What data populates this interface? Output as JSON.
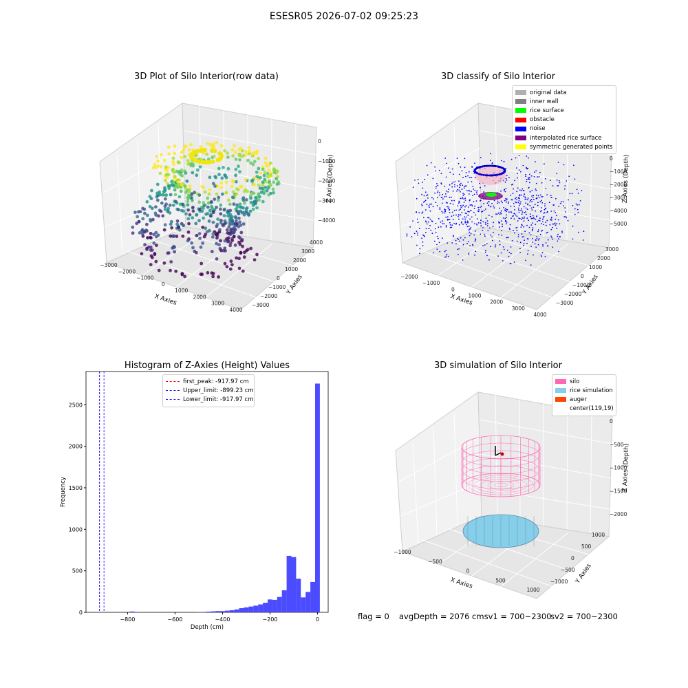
{
  "figure": {
    "suptitle": "ESESR05 2026-07-02 09:25:23",
    "status": {
      "flag": "flag = 0",
      "avg_depth": "avgDepth = 2076 cmsv1 = 700~2300",
      "sv2": "sv2 = 700~2300"
    }
  },
  "colors": {
    "histogram_bars": "#4b4bff",
    "first_peak_line": "#ff0000",
    "limit_lines": "#0000ff",
    "silo": "#ff69b4",
    "rice_simulation": "#87ceeb",
    "auger": "#ff4500"
  },
  "chart_data": [
    {
      "type": "scatter",
      "title": "3D Plot of Silo Interior(row data)",
      "xlabel": "X Axies",
      "ylabel": "Y Axies",
      "zlabel": "Z Axies (Depth)",
      "x_ticks": [
        "−3000",
        "−2000",
        "−1000",
        "0",
        "1000",
        "2000",
        "3000",
        "4000"
      ],
      "y_ticks": [
        "4000",
        "3000",
        "2000",
        "1000",
        "0",
        "−1000",
        "−2000",
        "−3000"
      ],
      "z_ticks": [
        "0",
        "−1000",
        "−2000",
        "−3000",
        "−4000"
      ],
      "colormap": "viridis (by depth)",
      "description_points": "ring-shaped point cloud descending in depth from about 0 to -4500"
    },
    {
      "type": "scatter",
      "title": "3D classify of Silo Interior",
      "xlabel": "X Axies",
      "ylabel": "Y Axies",
      "zlabel": "Z Axies (Depth)",
      "x_ticks": [
        "−2000",
        "−1000",
        "0",
        "1000",
        "2000",
        "3000",
        "4000"
      ],
      "y_ticks": [
        "3000",
        "2000",
        "1000",
        "0",
        "−1000",
        "−2000",
        "−3000"
      ],
      "z_ticks": [
        "0",
        "−1000",
        "−2000",
        "−3000",
        "−4000",
        "−5000"
      ],
      "legend": [
        {
          "label": "original data",
          "color": "#b0b0b0"
        },
        {
          "label": "inner wall",
          "color": "#808080"
        },
        {
          "label": "rice surface",
          "color": "#00ff00"
        },
        {
          "label": "obstacle",
          "color": "#ff0000"
        },
        {
          "label": "noise",
          "color": "#0000ff"
        },
        {
          "label": "interpolated rice surface",
          "color": "#800080"
        },
        {
          "label": "symmetric generated points",
          "color": "#ffff00"
        }
      ]
    },
    {
      "type": "bar",
      "title": "Histogram of Z-Axies (Height) Values",
      "xlabel": "Depth (cm)",
      "ylabel": "Frequency",
      "xlim": [
        -975,
        45
      ],
      "ylim": [
        0,
        2900
      ],
      "x_ticks": [
        -800,
        -600,
        -400,
        -200,
        0
      ],
      "y_ticks": [
        0,
        500,
        1000,
        1500,
        2000,
        2500
      ],
      "bin_width": 20,
      "bins": [
        {
          "x": -780,
          "value": 10
        },
        {
          "x": -760,
          "value": 5
        },
        {
          "x": -500,
          "value": 3
        },
        {
          "x": -480,
          "value": 5
        },
        {
          "x": -460,
          "value": 8
        },
        {
          "x": -440,
          "value": 12
        },
        {
          "x": -420,
          "value": 15
        },
        {
          "x": -400,
          "value": 15
        },
        {
          "x": -380,
          "value": 20
        },
        {
          "x": -360,
          "value": 25
        },
        {
          "x": -340,
          "value": 35
        },
        {
          "x": -320,
          "value": 50
        },
        {
          "x": -300,
          "value": 60
        },
        {
          "x": -280,
          "value": 70
        },
        {
          "x": -260,
          "value": 80
        },
        {
          "x": -240,
          "value": 95
        },
        {
          "x": -220,
          "value": 115
        },
        {
          "x": -200,
          "value": 155
        },
        {
          "x": -180,
          "value": 150
        },
        {
          "x": -160,
          "value": 185
        },
        {
          "x": -140,
          "value": 265
        },
        {
          "x": -120,
          "value": 680
        },
        {
          "x": -100,
          "value": 665
        },
        {
          "x": -80,
          "value": 405
        },
        {
          "x": -60,
          "value": 180
        },
        {
          "x": -40,
          "value": 245
        },
        {
          "x": -20,
          "value": 365
        },
        {
          "x": 0,
          "value": 2755
        }
      ],
      "vlines": [
        {
          "label": "first_peak: -917.97 cm",
          "x": -917.97,
          "color": "#ff0000"
        },
        {
          "label": "Upper_limit: -899.23 cm",
          "x": -899.23,
          "color": "#0000ff"
        },
        {
          "label": "Lower_limit: -917.97 cm",
          "x": -917.97,
          "color": "#0000ff"
        }
      ]
    },
    {
      "type": "scatter",
      "title": "3D simulation of Silo Interior",
      "xlabel": "X Axies",
      "ylabel": "Y Axies",
      "zlabel": "Z Axies (Depth)",
      "x_ticks": [
        "−1000",
        "−500",
        "0",
        "500",
        "1000"
      ],
      "y_ticks": [
        "1000",
        "500",
        "0",
        "−500",
        "−1000"
      ],
      "z_ticks": [
        "0",
        "−500",
        "−1000",
        "−1500",
        "−2000"
      ],
      "legend": [
        {
          "label": "silo",
          "color": "#ff69b4"
        },
        {
          "label": "rice simulation",
          "color": "#87ceeb"
        },
        {
          "label": "auger",
          "color": "#ff4500"
        },
        {
          "label": "center(119,19)",
          "color": ""
        }
      ]
    }
  ]
}
